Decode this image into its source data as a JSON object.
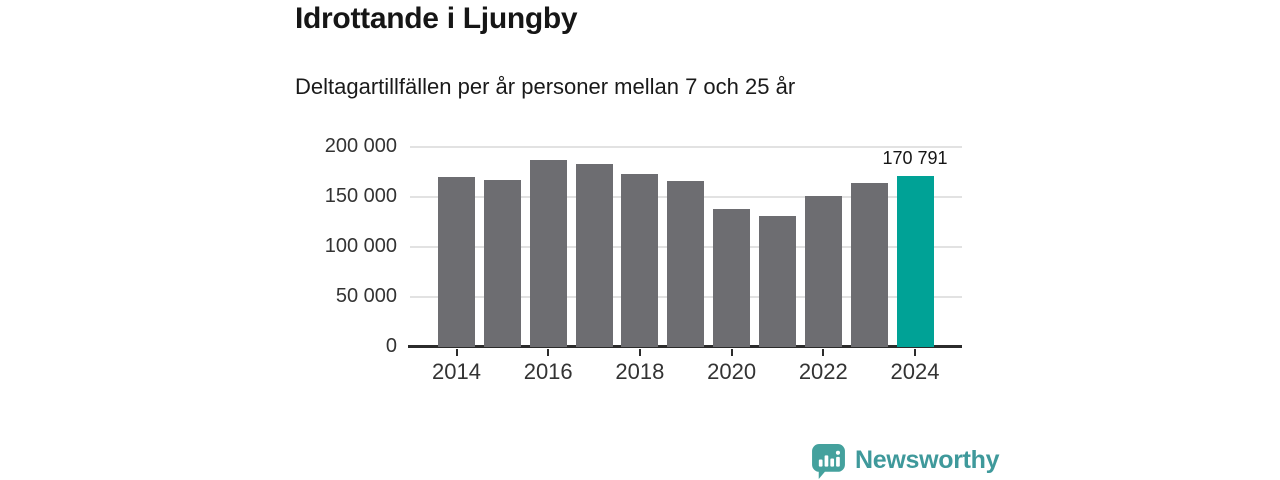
{
  "header": {
    "title": "Idrottande i Ljungby",
    "subtitle": "Deltagartillfällen per år personer mellan 7 och 25 år"
  },
  "chart_data": {
    "type": "bar",
    "title": "Idrottande i Ljungby",
    "subtitle": "Deltagartillfällen per år personer mellan 7 och 25 år",
    "categories": [
      "2014",
      "2015",
      "2016",
      "2017",
      "2018",
      "2019",
      "2020",
      "2021",
      "2022",
      "2023",
      "2024"
    ],
    "values": [
      170000,
      167000,
      187000,
      183000,
      173000,
      166000,
      138000,
      131000,
      151000,
      164000,
      170791
    ],
    "highlight_index": 10,
    "annotation": {
      "index": 10,
      "label": "170 791"
    },
    "ylim": [
      0,
      200000
    ],
    "yticks": [
      0,
      50000,
      100000,
      150000,
      200000
    ],
    "ytick_labels": [
      "0",
      "50 000",
      "100 000",
      "150 000",
      "200 000"
    ],
    "xtick_labels": [
      "2014",
      "2016",
      "2018",
      "2020",
      "2022",
      "2024"
    ],
    "grid": "horizontal",
    "legend": "none",
    "colors": {
      "bar": "#6d6d71",
      "highlight": "#00a296",
      "axis": "#2b2b2b",
      "gridline": "#e2e2e2"
    }
  },
  "brand": {
    "wordmark": "Newsworthy",
    "icon": "speech-bubble-bar-chart-icon",
    "color": "#3f999b"
  }
}
